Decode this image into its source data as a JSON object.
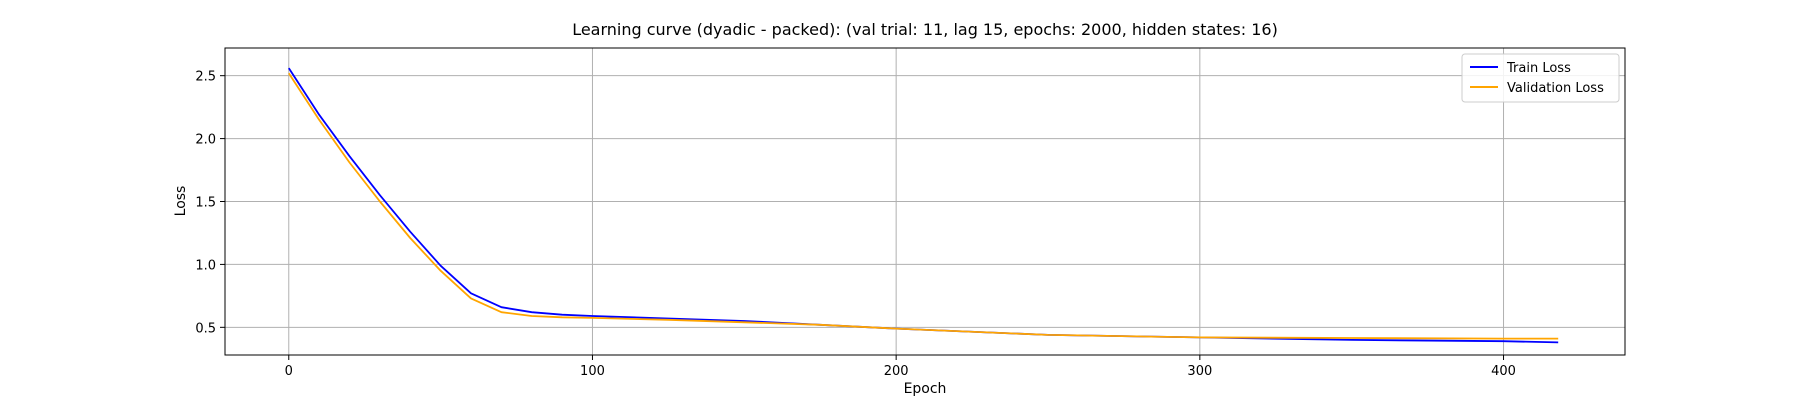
{
  "chart_data": {
    "type": "line",
    "title": "Learning curve (dyadic - packed): (val trial: 11, lag 15, epochs: 2000, hidden states: 16)",
    "xlabel": "Epoch",
    "ylabel": "Loss",
    "xlim": [
      -21,
      440
    ],
    "ylim": [
      0.28,
      2.72
    ],
    "xticks": [
      0,
      100,
      200,
      300,
      400
    ],
    "yticks": [
      0.5,
      1.0,
      1.5,
      2.0,
      2.5
    ],
    "xtick_labels": [
      "0",
      "100",
      "200",
      "300",
      "400"
    ],
    "ytick_labels": [
      "0.5",
      "1.0",
      "1.5",
      "2.0",
      "2.5"
    ],
    "grid": true,
    "legend_position": "top-right",
    "series": [
      {
        "name": "Train Loss",
        "color": "#0000ff",
        "x": [
          0,
          10,
          20,
          30,
          40,
          50,
          60,
          70,
          80,
          90,
          100,
          125,
          150,
          175,
          200,
          250,
          300,
          350,
          400,
          418
        ],
        "y": [
          2.56,
          2.19,
          1.86,
          1.55,
          1.26,
          0.99,
          0.77,
          0.66,
          0.62,
          0.6,
          0.59,
          0.57,
          0.55,
          0.52,
          0.49,
          0.44,
          0.42,
          0.4,
          0.39,
          0.38
        ]
      },
      {
        "name": "Validation Loss",
        "color": "#ffa500",
        "x": [
          0,
          10,
          20,
          30,
          40,
          50,
          60,
          70,
          80,
          90,
          100,
          125,
          150,
          175,
          200,
          250,
          300,
          350,
          400,
          418
        ],
        "y": [
          2.52,
          2.15,
          1.81,
          1.5,
          1.21,
          0.95,
          0.73,
          0.62,
          0.59,
          0.58,
          0.575,
          0.56,
          0.54,
          0.52,
          0.49,
          0.44,
          0.42,
          0.415,
          0.41,
          0.41
        ]
      }
    ]
  }
}
